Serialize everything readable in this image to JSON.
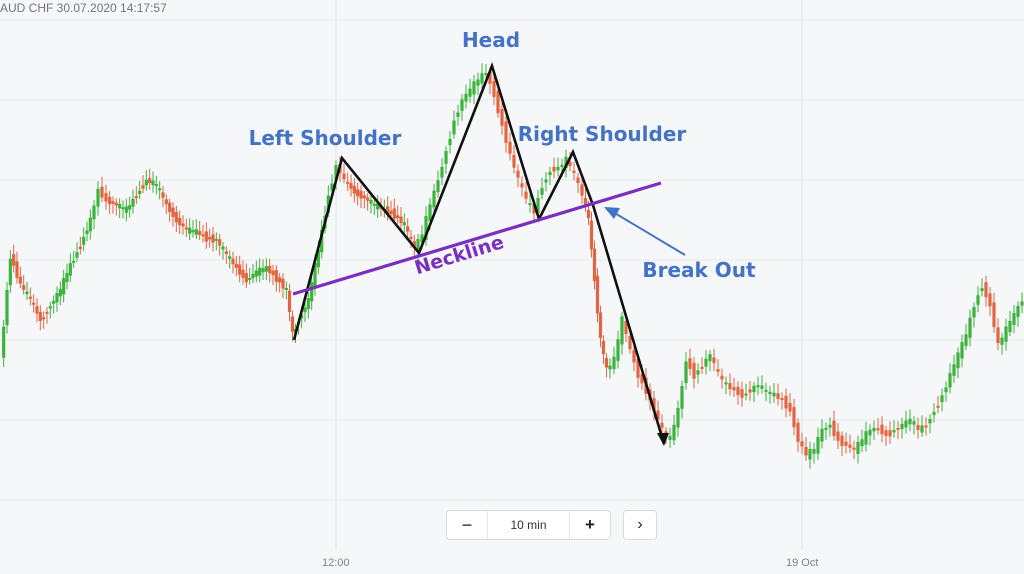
{
  "header": {
    "symbol_datetime": "AUD CHF  30.07.2020 14:17:57"
  },
  "toolbar": {
    "zoom_out": "−",
    "interval": "10 min",
    "zoom_in": "+",
    "next": "›"
  },
  "x_axis": {
    "ticks": [
      "12:00",
      "19 Oct"
    ]
  },
  "annotations": {
    "head": "Head",
    "left_shoulder": "Left Shoulder",
    "right_shoulder": "Right Shoulder",
    "neckline": "Neckline",
    "break_out": "Break Out"
  },
  "colors": {
    "background": "#f6f7f9",
    "bullish": "#3cb33c",
    "bearish": "#e2653f",
    "annotation_text": "#4472c4",
    "neckline": "#7b2fbe",
    "pattern_line": "#111111"
  },
  "chart_data": {
    "type": "candlestick",
    "pattern": "head and shoulders"
  }
}
